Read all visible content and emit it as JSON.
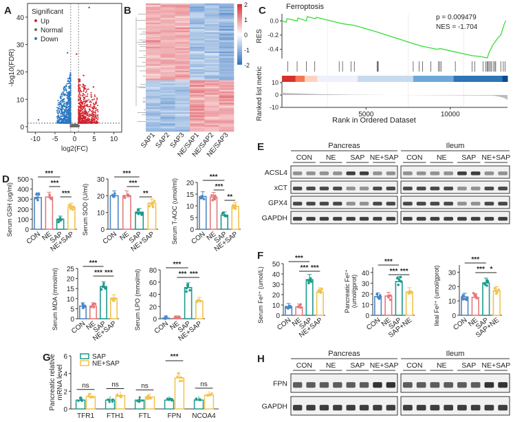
{
  "panel_labels": [
    "A",
    "B",
    "C",
    "D",
    "E",
    "F",
    "G",
    "H"
  ],
  "groups": [
    "CON",
    "NE",
    "SAP",
    "NE+SAP"
  ],
  "group_colors": {
    "CON": "#4a86c5",
    "NE": "#e5777a",
    "SAP": "#1b9a8c",
    "NE+SAP": "#f2c24b"
  },
  "chart_data": [
    {
      "id": "A",
      "type": "scatter",
      "xlabel": "log2(FC)",
      "ylabel": "-log10(FDR)",
      "xlim": [
        -12,
        12
      ],
      "ylim": [
        -2,
        45
      ],
      "xticks": [
        -10,
        -5,
        0,
        5,
        10
      ],
      "yticks": [
        0,
        10,
        20,
        30,
        40
      ],
      "thresholds": {
        "log2fc": [
          -1,
          1
        ],
        "fdr_line": 1.3
      },
      "legend": {
        "title": "Significant",
        "items": [
          {
            "name": "Up",
            "color": "#d0242e"
          },
          {
            "name": "Normal",
            "color": "#6b6b6b"
          },
          {
            "name": "Down",
            "color": "#2a78c2"
          }
        ]
      },
      "notable_points": [
        [
          3.7,
          43.5
        ],
        [
          0.5,
          26.5
        ],
        [
          -1.8,
          27
        ],
        [
          2.3,
          18.7
        ],
        [
          4.8,
          14.5
        ],
        [
          -9.2,
          2.5
        ]
      ]
    },
    {
      "id": "B",
      "type": "heatmap",
      "columns": [
        "SAP1",
        "SAP2",
        "SAP3",
        "NE/SAP1",
        "NE/SAP2",
        "NE/SAP3"
      ],
      "colorbar": {
        "ticks": [
          "2",
          "1",
          "0",
          "-1",
          "-2"
        ],
        "range": [
          -2,
          2
        ],
        "colors": [
          "#d8303a",
          "#ffffff",
          "#2d6fc0"
        ]
      }
    },
    {
      "id": "C",
      "type": "line",
      "title": "Ferroptosis",
      "stats": [
        "p = 0.009479",
        "NES = -1.704"
      ],
      "xlabel": "Rank in Ordered Dataset",
      "ylabel_top": "RES",
      "ylabel_bottom": "Ranked list metric",
      "xticks": [
        5000,
        10000
      ],
      "xlim": [
        0,
        13400
      ],
      "res_yticks": [
        "0.0",
        "-0.2",
        "-0.4"
      ],
      "res_ylim": [
        -0.53,
        0.1
      ],
      "metric_yticks": [
        "10",
        "0",
        "-10"
      ],
      "line_color": "#33dd33",
      "res_curve": [
        [
          0,
          0
        ],
        [
          250,
          -0.02
        ],
        [
          300,
          0.03
        ],
        [
          900,
          0.0
        ],
        [
          950,
          0.04
        ],
        [
          1450,
          0.0
        ],
        [
          1500,
          0.06
        ],
        [
          2000,
          0.03
        ],
        [
          2050,
          0.05
        ],
        [
          3400,
          -0.03
        ],
        [
          3600,
          -0.04
        ],
        [
          4200,
          -0.06
        ],
        [
          4400,
          -0.07
        ],
        [
          5700,
          -0.16
        ],
        [
          7800,
          -0.32
        ],
        [
          8200,
          -0.35
        ],
        [
          9200,
          -0.4
        ],
        [
          9400,
          -0.39
        ],
        [
          11300,
          -0.49
        ],
        [
          11700,
          -0.5
        ],
        [
          12200,
          -0.52
        ],
        [
          12300,
          -0.45
        ],
        [
          12500,
          -0.35
        ],
        [
          12800,
          -0.25
        ],
        [
          13000,
          -0.2
        ],
        [
          13200,
          -0.05
        ],
        [
          13300,
          0.0
        ]
      ],
      "hits": [
        350,
        900,
        1450,
        1950,
        3400,
        3600,
        4100,
        4300,
        5650,
        5700,
        5720,
        7800,
        8150,
        8350,
        8850,
        9300,
        9380,
        9450,
        10300,
        11300,
        11450,
        11950,
        12100,
        12180,
        12230,
        12300,
        12380,
        12450,
        12550,
        12650,
        12700,
        13000,
        13150,
        13250
      ]
    },
    {
      "id": "D1",
      "type": "bar",
      "ylabel": "Serum GSH (ug/ml)",
      "categories": [
        "CON",
        "NE",
        "SAP",
        "NE+SAP"
      ],
      "values": [
        315,
        320,
        100,
        220
      ],
      "ylim": [
        0,
        500
      ],
      "yticks": [
        0,
        100,
        200,
        300,
        400,
        500
      ],
      "sig": [
        {
          "from": 0,
          "to": 2,
          "label": "***"
        },
        {
          "from": 1,
          "to": 2,
          "label": "***"
        },
        {
          "from": 2,
          "to": 3,
          "label": "***"
        }
      ]
    },
    {
      "id": "D2",
      "type": "bar",
      "ylabel": "Serum SOD (U/ml)",
      "categories": [
        "CON",
        "NE",
        "SAP",
        "NE+SAP"
      ],
      "values": [
        20,
        20,
        10.2,
        15.5
      ],
      "ylim": [
        0,
        30
      ],
      "yticks": [
        0,
        10,
        20,
        30
      ],
      "sig": [
        {
          "from": 0,
          "to": 2,
          "label": "***"
        },
        {
          "from": 1,
          "to": 2,
          "label": "***"
        },
        {
          "from": 2,
          "to": 3,
          "label": "**"
        }
      ]
    },
    {
      "id": "D3",
      "type": "bar",
      "ylabel": "Serum T-AOC (umol/ml)",
      "categories": [
        "CON",
        "NE",
        "SAP",
        "NE+SAP"
      ],
      "values": [
        14,
        13.7,
        6,
        9.7
      ],
      "ylim": [
        0,
        20
      ],
      "yticks": [
        0,
        5,
        10,
        15,
        20
      ],
      "sig": [
        {
          "from": 0,
          "to": 2,
          "label": "***"
        },
        {
          "from": 1,
          "to": 2,
          "label": "***"
        },
        {
          "from": 2,
          "to": 3,
          "label": "**"
        }
      ]
    },
    {
      "id": "D4",
      "type": "bar",
      "ylabel": "Serum MDA (mmol/ml)",
      "categories": [
        "CON",
        "NE",
        "SAP",
        "NE+SAP"
      ],
      "values": [
        6.3,
        6.3,
        16,
        10
      ],
      "ylim": [
        0,
        25
      ],
      "yticks": [
        0,
        5,
        10,
        15,
        20,
        25
      ],
      "sig": [
        {
          "from": 0,
          "to": 2,
          "label": "***"
        },
        {
          "from": 1,
          "to": 2,
          "label": "***"
        },
        {
          "from": 2,
          "to": 3,
          "label": "***"
        }
      ]
    },
    {
      "id": "D5",
      "type": "bar",
      "ylabel": "Serum LPO (mmol/ml)",
      "categories": [
        "CON",
        "NE",
        "SAP",
        "NE+SAP"
      ],
      "values": [
        1,
        1,
        51,
        29
      ],
      "ylim": [
        0,
        80
      ],
      "yticks": [
        0,
        20,
        40,
        60,
        80
      ],
      "sig": [
        {
          "from": 0,
          "to": 2,
          "label": "***"
        },
        {
          "from": 1,
          "to": 2,
          "label": "***"
        },
        {
          "from": 2,
          "to": 3,
          "label": "***"
        }
      ]
    },
    {
      "id": "F1",
      "type": "bar",
      "ylabel": "Serum Fe²⁺ (umol/L)",
      "categories": [
        "CON",
        "NE",
        "SAP",
        "NE+SAP"
      ],
      "values": [
        8.5,
        8,
        34.5,
        22.5
      ],
      "ylim": [
        0,
        50
      ],
      "yticks": [
        0,
        10,
        20,
        30,
        40,
        50
      ],
      "sig": [
        {
          "from": 0,
          "to": 2,
          "label": "***"
        },
        {
          "from": 1,
          "to": 2,
          "label": "***"
        },
        {
          "from": 2,
          "to": 3,
          "label": "***"
        }
      ]
    },
    {
      "id": "F2",
      "type": "bar",
      "ylabel": "Pancreatic Fe²⁺",
      "ylabel2": "(umol/gprot)",
      "categories": [
        "CON",
        "NE",
        "SAP",
        "SAP+NE"
      ],
      "values": [
        17.5,
        18,
        31.5,
        22
      ],
      "ylim": [
        0,
        45
      ],
      "yticks": [
        0,
        10,
        20,
        30,
        40
      ],
      "sig": [
        {
          "from": 0,
          "to": 2,
          "label": "***"
        },
        {
          "from": 1,
          "to": 2,
          "label": "***"
        },
        {
          "from": 2,
          "to": 3,
          "label": "***"
        }
      ]
    },
    {
      "id": "F3",
      "type": "bar",
      "ylabel": "Ileal Fe²⁺ (umol/gprot)",
      "categories": [
        "CON",
        "NE",
        "SAP",
        "SAP+NE"
      ],
      "values": [
        12.8,
        12.5,
        22.5,
        17
      ],
      "ylim": [
        0,
        35
      ],
      "yticks": [
        0,
        10,
        20,
        30
      ],
      "sig": [
        {
          "from": 0,
          "to": 2,
          "label": "***"
        },
        {
          "from": 1,
          "to": 2,
          "label": "***"
        },
        {
          "from": 2,
          "to": 3,
          "label": "*"
        }
      ]
    },
    {
      "id": "G",
      "type": "bar",
      "ylabel": "Pancreatic relative",
      "ylabel2": "mRNA level",
      "categories": [
        "TFR1",
        "FTH1",
        "FTL",
        "FPN",
        "NCOA4"
      ],
      "ylim": [
        0,
        6
      ],
      "yticks": [
        0,
        2,
        4,
        6
      ],
      "series": [
        {
          "name": "SAP",
          "color": "#1b9a8c",
          "values": [
            1,
            1,
            1,
            1,
            1
          ]
        },
        {
          "name": "NE+SAP",
          "color": "#f2c24b",
          "values": [
            1.4,
            1.5,
            1.35,
            3.5,
            1.55
          ]
        }
      ],
      "sig": [
        "ns",
        "ns",
        "ns",
        "***",
        "ns"
      ]
    }
  ],
  "blots": {
    "E": {
      "tissues": [
        "Pancreas",
        "Ileum"
      ],
      "groups": [
        "CON",
        "NE",
        "SAP",
        "NE+SAP"
      ],
      "rows": [
        "ACSL4",
        "xCT",
        "GPX4",
        "GAPDH"
      ]
    },
    "H": {
      "tissues": [
        "Pancreas",
        "Ileum"
      ],
      "groups": [
        "CON",
        "NE",
        "SAP",
        "NE+SAP"
      ],
      "rows": [
        "FPN",
        "GAPDH"
      ]
    }
  }
}
